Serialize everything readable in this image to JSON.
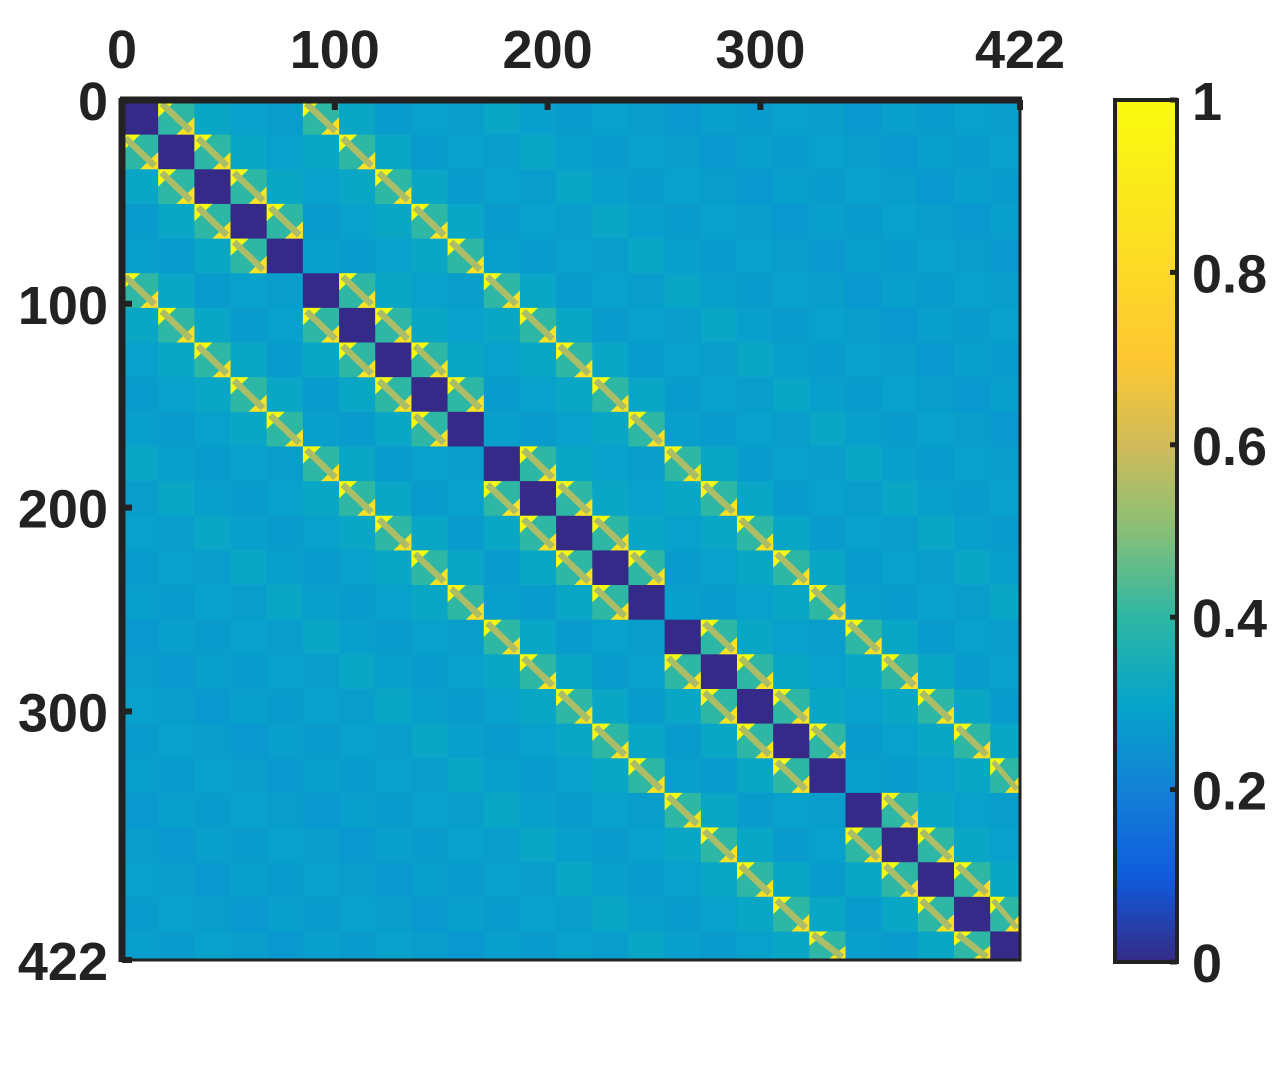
{
  "chart_data": {
    "type": "heatmap",
    "title": "",
    "xlabel": "",
    "ylabel": "",
    "matrix_size": 422,
    "block_size": 17,
    "x_ticks": [
      0,
      100,
      200,
      300,
      422
    ],
    "y_ticks": [
      0,
      100,
      200,
      300,
      422
    ],
    "colorbar": {
      "ticks": [
        0,
        0.2,
        0.4,
        0.6,
        0.8,
        1
      ],
      "tick_labels": [
        "0",
        "0.2",
        "0.4",
        "0.6",
        "0.8",
        "1"
      ],
      "range": [
        0,
        1
      ],
      "colormap": "parula"
    },
    "structure": {
      "diagonal_value": 0.0,
      "near_band_peak": 1.0,
      "off_band_value": 0.28,
      "grid": "5x5 lattice"
    },
    "colors": {
      "low": "#352a87",
      "background": "#1f74e0",
      "high": "#f9fb0e",
      "axis": "#222222"
    }
  }
}
